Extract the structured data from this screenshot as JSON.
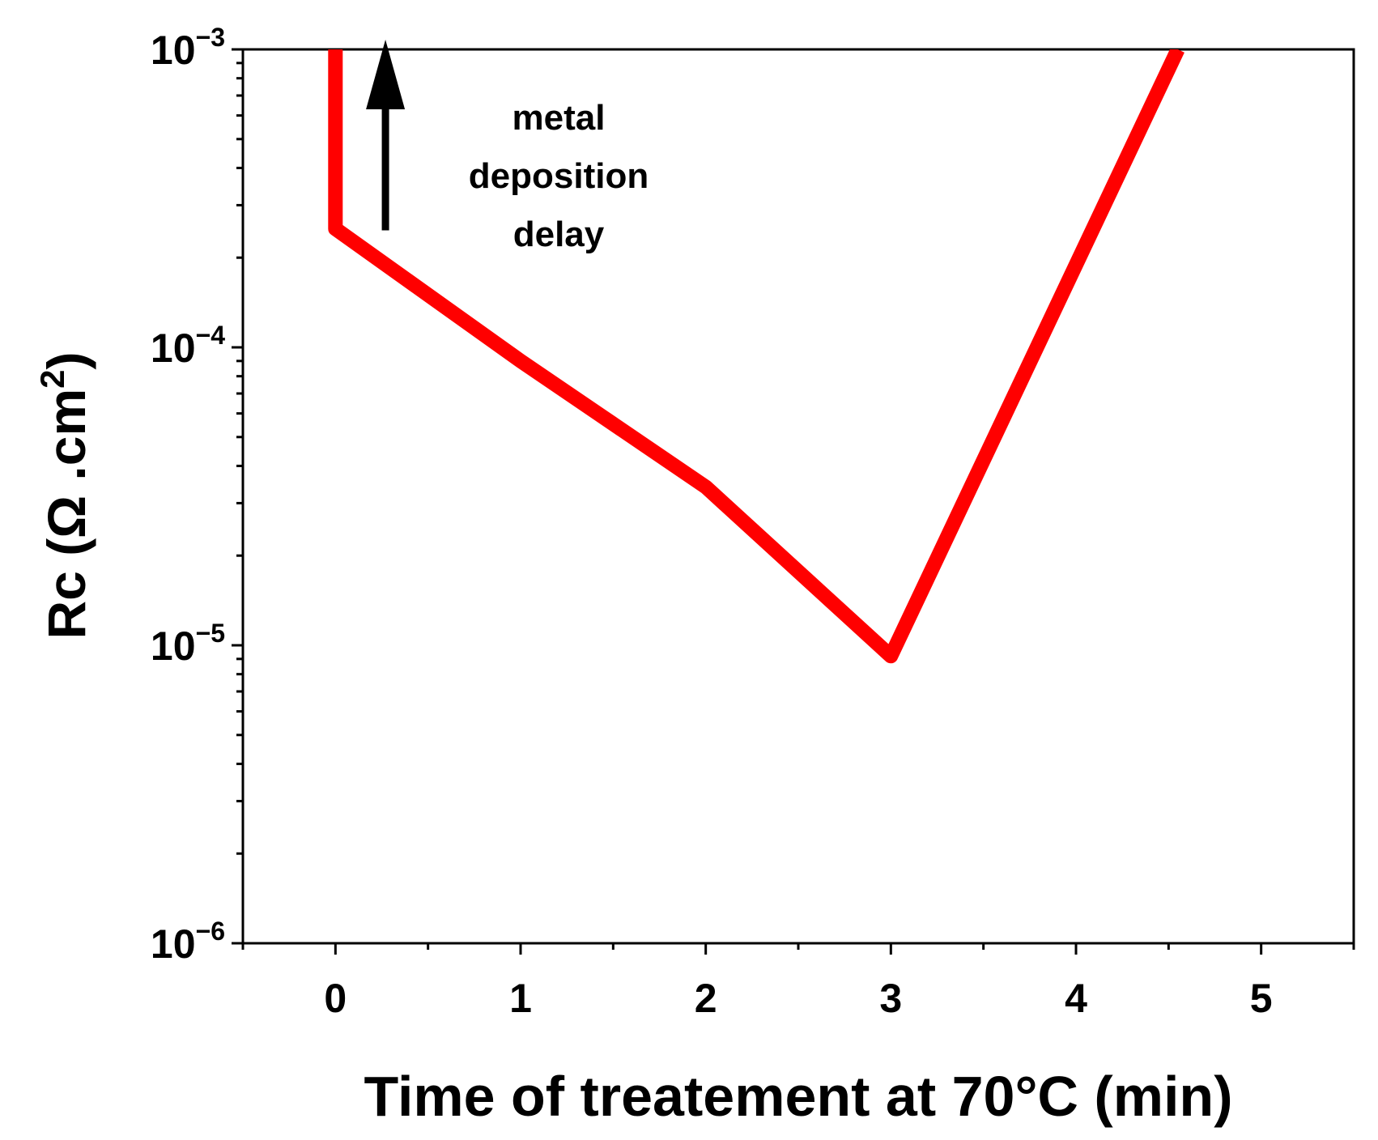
{
  "chart_data": {
    "type": "line",
    "title": "",
    "xlabel": "Time of treatement at 70°C (min)",
    "ylabel": {
      "prefix": "Rc (Ω .cm",
      "sup": "2",
      "suffix": ")"
    },
    "xlim": [
      -0.5,
      5.5
    ],
    "ylim": [
      1e-06,
      0.001
    ],
    "yscale": "log",
    "x_ticks": [
      0,
      1,
      2,
      3,
      4,
      5
    ],
    "x_tick_labels": [
      "0",
      "1",
      "2",
      "3",
      "4",
      "5"
    ],
    "y_ticks": [
      {
        "value": 1e-06,
        "base": "10",
        "exp": "−6"
      },
      {
        "value": 1e-05,
        "base": "10",
        "exp": "−5"
      },
      {
        "value": 0.0001,
        "base": "10",
        "exp": "−4"
      },
      {
        "value": 0.001,
        "base": "10",
        "exp": "−3"
      }
    ],
    "series": [
      {
        "name": "Rc",
        "color": "#ff0000",
        "x": [
          0,
          0,
          1,
          2,
          3,
          4.55
        ],
        "y": [
          0.001,
          0.00025,
          9e-05,
          3.4e-05,
          9.2e-06,
          0.001
        ]
      }
    ],
    "annotation": {
      "lines": [
        "metal",
        "deposition",
        "delay"
      ],
      "arrow_x": 0.27,
      "arrow_from_y": 0.00025,
      "arrow_to_y": 0.001
    },
    "grid": false
  }
}
